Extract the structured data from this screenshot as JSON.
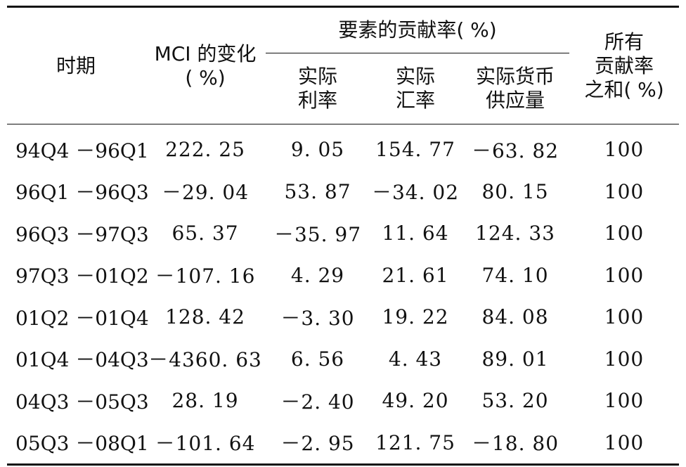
{
  "table": {
    "headers": {
      "period": "时期",
      "mci_line1": "MCI 的变化",
      "mci_line2": "( %)",
      "contribution_group": "要素的贡献率( %)",
      "real_rate_line1": "实际",
      "real_rate_line2": "利率",
      "real_fx_line1": "实际",
      "real_fx_line2": "汇率",
      "real_money_line1": "实际货币",
      "real_money_line2": "供应量",
      "total_line1": "所有",
      "total_line2": "贡献率",
      "total_line3": "之和( %)"
    },
    "rows": [
      {
        "period": "94Q4 －96Q1",
        "mci": "222. 25",
        "rate": "9. 05",
        "fx": "154. 77",
        "money": "－63. 82",
        "total": "100"
      },
      {
        "period": "96Q1 －96Q3",
        "mci": "－29. 04",
        "rate": "53. 87",
        "fx": "－34. 02",
        "money": "80. 15",
        "total": "100"
      },
      {
        "period": "96Q3 －97Q3",
        "mci": "65. 37",
        "rate": "－35. 97",
        "fx": "11. 64",
        "money": "124. 33",
        "total": "100"
      },
      {
        "period": "97Q3 －01Q2",
        "mci": "－107. 16",
        "rate": "4. 29",
        "fx": "21. 61",
        "money": "74. 10",
        "total": "100"
      },
      {
        "period": "01Q2 －01Q4",
        "mci": "128. 42",
        "rate": "－3. 30",
        "fx": "19. 22",
        "money": "84. 08",
        "total": "100"
      },
      {
        "period": "01Q4 －04Q3",
        "mci": "－4360. 63",
        "rate": "6. 56",
        "fx": "4. 43",
        "money": "89. 01",
        "total": "100"
      },
      {
        "period": "04Q3 －05Q3",
        "mci": "28. 19",
        "rate": "－2. 40",
        "fx": "49. 20",
        "money": "53. 20",
        "total": "100"
      },
      {
        "period": "05Q3 －08Q1",
        "mci": "－101. 64",
        "rate": "－2. 95",
        "fx": "121. 75",
        "money": "－18. 80",
        "total": "100"
      }
    ]
  }
}
